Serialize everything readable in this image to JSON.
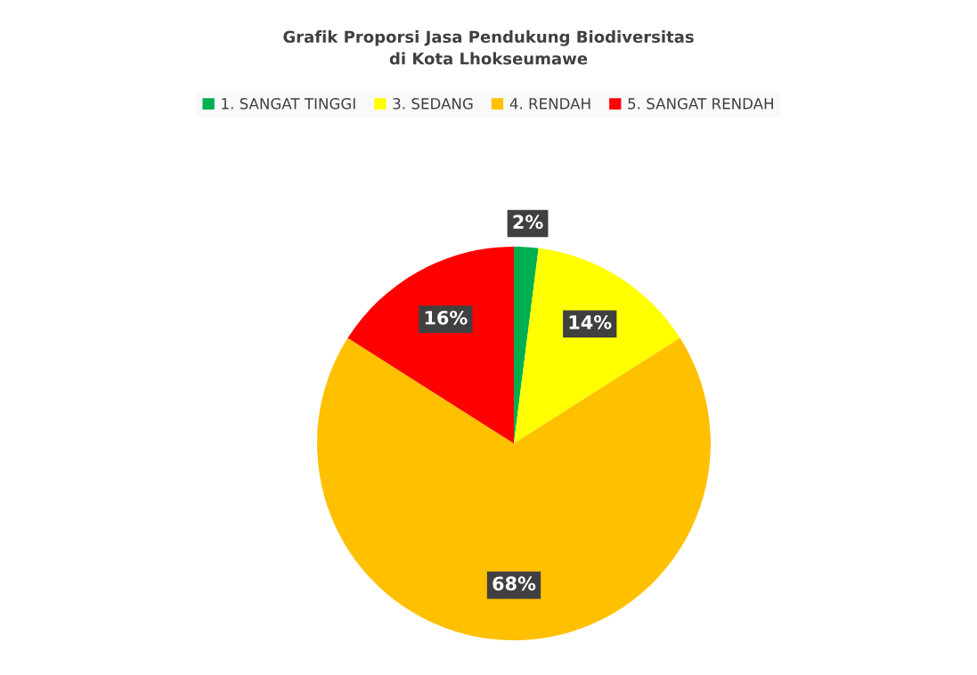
{
  "chart_data": {
    "type": "pie",
    "title": "Grafik Proporsi Jasa Pendukung Biodiversitas\ndi Kota Lhokseumawe",
    "categories": [
      "1. SANGAT TINGGI",
      "3. SEDANG",
      "4. RENDAH",
      "5. SANGAT RENDAH"
    ],
    "values": [
      2,
      14,
      68,
      16
    ],
    "colors": [
      "#00b050",
      "#ffff00",
      "#ffc000",
      "#ff0000"
    ],
    "value_labels": [
      "2%",
      "14%",
      "68%",
      "16%"
    ],
    "legend": "top"
  }
}
